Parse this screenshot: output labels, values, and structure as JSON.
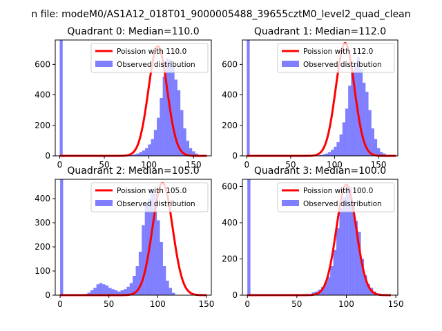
{
  "figure_title": "n file: modeM0/AS1A12_018T01_9000005488_39655cztM0_level2_quad_clean",
  "chart_data": [
    {
      "type": "bar",
      "title": "Quadrant 0: Median=110.0",
      "xlim": [
        -5,
        170
      ],
      "ylim": [
        0,
        760
      ],
      "xticks": [
        0,
        50,
        100,
        150
      ],
      "yticks": [
        0,
        200,
        400,
        600
      ],
      "legend": [
        "Poission with 110.0",
        "Observed distribution"
      ],
      "legend_position": "upper right",
      "spike": {
        "x": 0,
        "count": 760
      },
      "hist": {
        "start": 0,
        "width": 3.3,
        "counts": [
          760,
          0,
          0,
          0,
          0,
          0,
          0,
          0,
          0,
          0,
          0,
          0,
          0,
          0,
          0,
          0,
          0,
          0,
          0,
          0,
          0,
          0,
          0,
          0,
          5,
          10,
          15,
          25,
          35,
          50,
          75,
          110,
          170,
          250,
          380,
          520,
          640,
          630,
          590,
          500,
          430,
          300,
          180,
          100,
          50,
          30,
          15
        ]
      },
      "poisson": {
        "lambda": 110.0,
        "peak": 720,
        "x_max": 165
      }
    },
    {
      "type": "bar",
      "title": "Quadrant 1: Median=112.0",
      "xlim": [
        -5,
        172
      ],
      "ylim": [
        0,
        760
      ],
      "xticks": [
        0,
        50,
        100,
        150
      ],
      "yticks": [
        0,
        200,
        400,
        600
      ],
      "legend": [
        "Poission with 112.0",
        "Observed distribution"
      ],
      "legend_position": "upper right",
      "spike": {
        "x": 0,
        "count": 760
      },
      "hist": {
        "start": 0,
        "width": 3.3,
        "counts": [
          760,
          0,
          0,
          0,
          0,
          0,
          0,
          0,
          0,
          0,
          0,
          0,
          0,
          0,
          0,
          0,
          0,
          0,
          0,
          0,
          0,
          0,
          0,
          0,
          0,
          5,
          10,
          15,
          25,
          40,
          60,
          90,
          140,
          220,
          310,
          460,
          560,
          600,
          650,
          570,
          480,
          420,
          300,
          180,
          110,
          50,
          25,
          15
        ]
      },
      "poisson": {
        "lambda": 112.0,
        "peak": 740,
        "x_max": 170
      }
    },
    {
      "type": "bar",
      "title": "Quadrant 2: Median=105.0",
      "xlim": [
        -5,
        155
      ],
      "ylim": [
        0,
        480
      ],
      "xticks": [
        0,
        50,
        100,
        150
      ],
      "yticks": [
        0,
        100,
        200,
        300,
        400
      ],
      "legend": [
        "Poission with 105.0",
        "Observed distribution"
      ],
      "legend_position": "upper right",
      "spike": {
        "x": 0,
        "count": 480
      },
      "hist": {
        "start": 0,
        "width": 3.1,
        "counts": [
          480,
          0,
          0,
          0,
          0,
          0,
          0,
          0,
          5,
          10,
          20,
          30,
          45,
          50,
          45,
          40,
          30,
          25,
          20,
          15,
          20,
          25,
          35,
          50,
          80,
          120,
          180,
          290,
          380,
          400,
          440,
          420,
          310,
          220,
          120,
          60,
          30,
          10
        ]
      },
      "poisson": {
        "lambda": 105.0,
        "peak": 465,
        "x_max": 150
      }
    },
    {
      "type": "bar",
      "title": "Quadrant 3: Median=100.0",
      "xlim": [
        -5,
        152
      ],
      "ylim": [
        0,
        640
      ],
      "xticks": [
        0,
        50,
        100,
        150
      ],
      "yticks": [
        0,
        200,
        400,
        600
      ],
      "legend": [
        "Poission with 100.0",
        "Observed distribution"
      ],
      "legend_position": "upper right",
      "spike": {
        "x": 0,
        "count": 640
      },
      "hist": {
        "start": 0,
        "width": 3.1,
        "counts": [
          640,
          0,
          0,
          0,
          0,
          0,
          0,
          0,
          0,
          0,
          0,
          0,
          0,
          0,
          0,
          0,
          0,
          0,
          0,
          0,
          0,
          15,
          20,
          30,
          45,
          70,
          100,
          160,
          250,
          370,
          480,
          540,
          590,
          600,
          520,
          410,
          350,
          200,
          110,
          60,
          40,
          20,
          10
        ]
      },
      "poisson": {
        "lambda": 100.0,
        "peak": 610,
        "x_max": 145
      }
    }
  ]
}
